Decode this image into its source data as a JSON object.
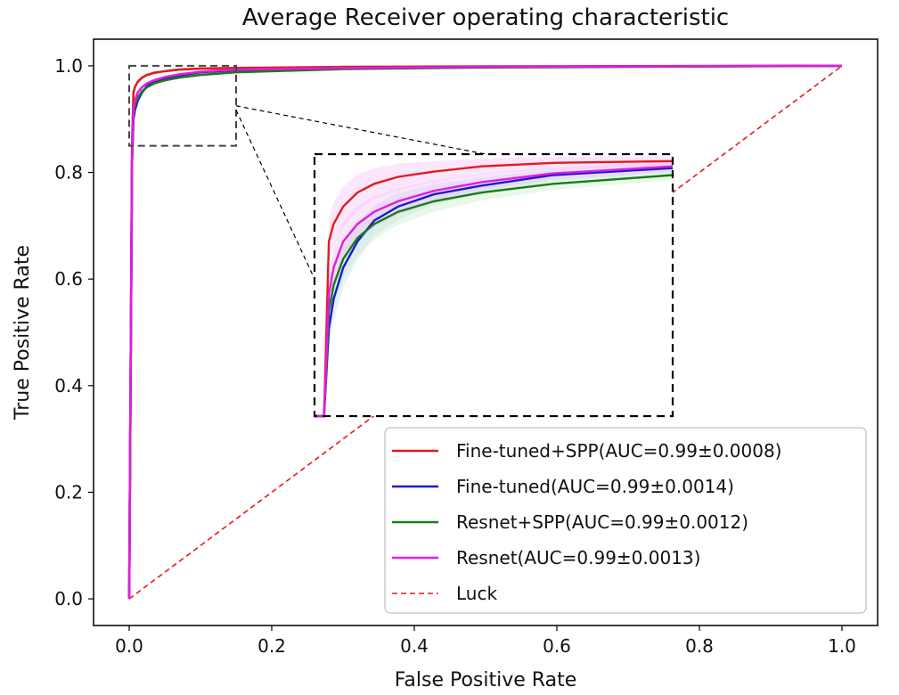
{
  "chart_data": {
    "type": "line",
    "title": "Average Receiver operating characteristic",
    "xlabel": "False Positive Rate",
    "ylabel": "True Positive Rate",
    "xlim": [
      -0.05,
      1.05
    ],
    "ylim": [
      -0.05,
      1.05
    ],
    "xticks": [
      "0.0",
      "0.2",
      "0.4",
      "0.6",
      "0.8",
      "1.0"
    ],
    "yticks": [
      "0.0",
      "0.2",
      "0.4",
      "0.6",
      "0.8",
      "1.0"
    ],
    "grid": false,
    "legend_position": "lower-right",
    "series": [
      {
        "name": "Fine-tuned+SPP(AUC=0.99±0.0008)",
        "color": "#e41a1c",
        "style": "solid",
        "x": [
          0,
          0.004,
          0.006,
          0.008,
          0.012,
          0.018,
          0.025,
          0.035,
          0.05,
          0.07,
          0.1,
          0.15,
          0.3,
          0.5,
          1.0
        ],
        "y": [
          0,
          0.85,
          0.95,
          0.96,
          0.97,
          0.978,
          0.983,
          0.987,
          0.99,
          0.993,
          0.995,
          0.996,
          0.998,
          0.999,
          1.0
        ]
      },
      {
        "name": "Fine-tuned(AUC=0.99±0.0014)",
        "color": "#1a1acc",
        "style": "solid",
        "x": [
          0,
          0.004,
          0.006,
          0.008,
          0.012,
          0.018,
          0.025,
          0.035,
          0.05,
          0.07,
          0.1,
          0.15,
          0.3,
          0.5,
          1.0
        ],
        "y": [
          0,
          0.82,
          0.9,
          0.917,
          0.935,
          0.95,
          0.962,
          0.97,
          0.977,
          0.982,
          0.988,
          0.992,
          0.996,
          0.998,
          1.0
        ]
      },
      {
        "name": "Resnet+SPP(AUC=0.99±0.0012)",
        "color": "#1a7a1a",
        "style": "solid",
        "x": [
          0,
          0.004,
          0.006,
          0.008,
          0.012,
          0.018,
          0.025,
          0.035,
          0.05,
          0.07,
          0.1,
          0.15,
          0.3,
          0.5,
          1.0
        ],
        "y": [
          0,
          0.82,
          0.91,
          0.925,
          0.94,
          0.952,
          0.96,
          0.967,
          0.973,
          0.978,
          0.983,
          0.988,
          0.994,
          0.997,
          1.0
        ]
      },
      {
        "name": "Resnet(AUC=0.99±0.0013)",
        "color": "#e31ae3",
        "style": "solid",
        "x": [
          0,
          0.004,
          0.006,
          0.008,
          0.012,
          0.018,
          0.025,
          0.035,
          0.05,
          0.07,
          0.1,
          0.15,
          0.3,
          0.5,
          1.0
        ],
        "y": [
          0,
          0.83,
          0.92,
          0.935,
          0.95,
          0.96,
          0.967,
          0.973,
          0.979,
          0.984,
          0.989,
          0.993,
          0.996,
          0.998,
          1.0
        ]
      },
      {
        "name": "Luck",
        "color": "#e41a1c",
        "style": "dashed",
        "x": [
          0,
          1
        ],
        "y": [
          0,
          1
        ]
      }
    ],
    "inset": {
      "source_xlim": [
        0,
        0.15
      ],
      "source_ylim": [
        0.85,
        1.0
      ]
    }
  }
}
